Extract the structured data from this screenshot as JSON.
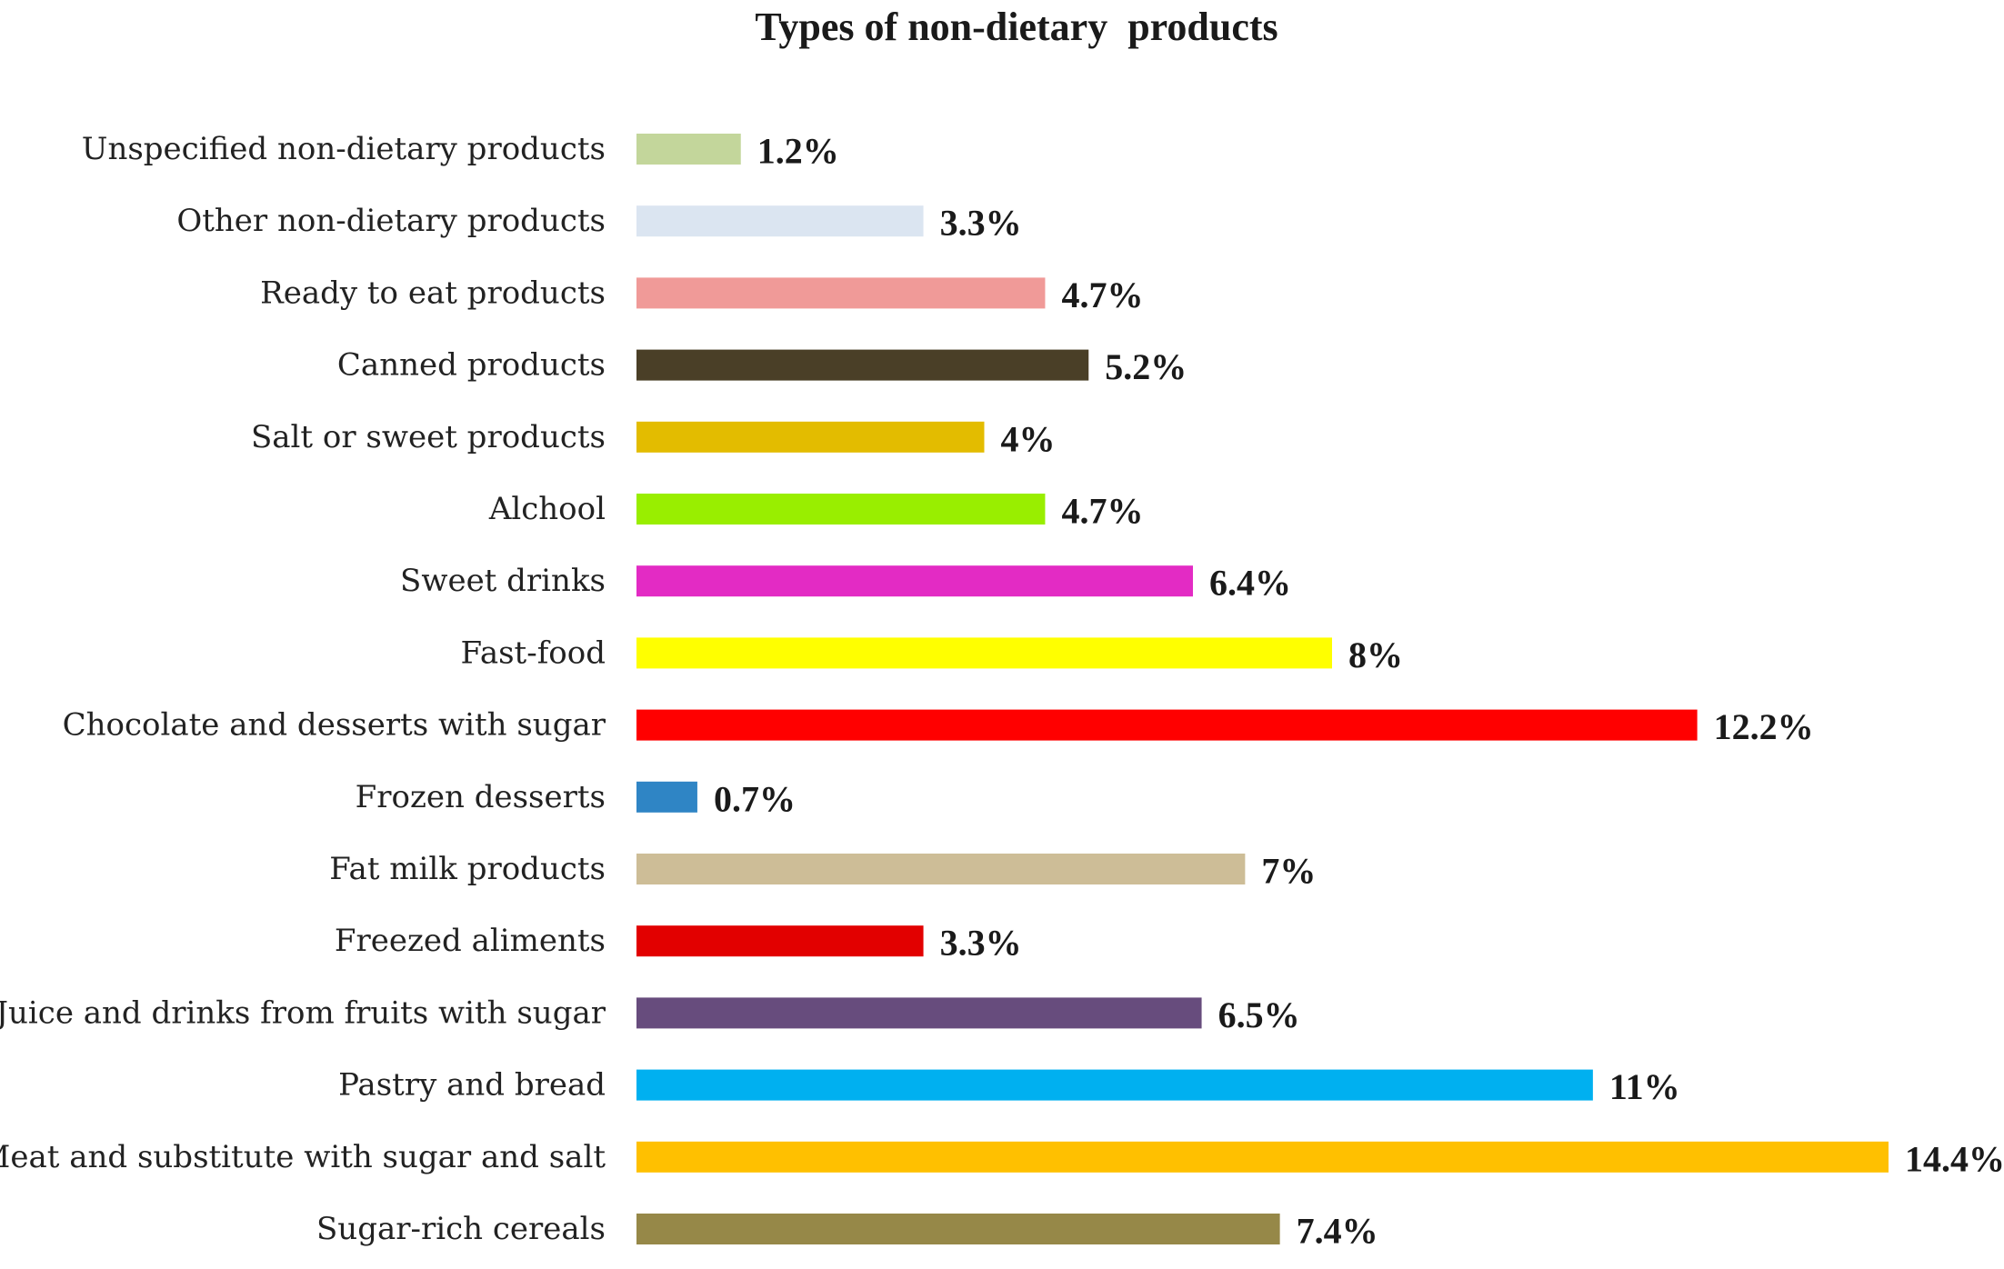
{
  "chart_data": {
    "type": "bar",
    "orientation": "horizontal",
    "title": "Types of non-dietary  products",
    "xlabel": "",
    "ylabel": "",
    "xlim": [
      0,
      14.4
    ],
    "grid": false,
    "legend": "none",
    "value_suffix": "%",
    "categories": [
      "Unspecified non-dietary products",
      "Other non-dietary products",
      "Ready to eat products",
      "Canned products",
      "Salt or sweet products",
      "Alchool",
      "Sweet drinks",
      "Fast-food",
      "Chocolate and desserts with sugar",
      "Frozen desserts",
      "Fat milk products",
      "Freezed aliments",
      "Juice and drinks from fruits with sugar",
      "Pastry and bread",
      "Meat and substitute with sugar and salt",
      "Sugar-rich cereals"
    ],
    "values": [
      1.2,
      3.3,
      4.7,
      5.2,
      4,
      4.7,
      6.4,
      8,
      12.2,
      0.7,
      7,
      3.3,
      6.5,
      11,
      14.4,
      7.4
    ],
    "value_labels": [
      "1.2%",
      "3.3%",
      "4.7%",
      "5.2%",
      "4%",
      "4.7%",
      "6.4%",
      "8%",
      "12.2%",
      "0.7%",
      "7%",
      "3.3%",
      "6.5%",
      "11%",
      "14.4%",
      "7.4%"
    ],
    "colors": [
      "#c3d69b",
      "#dbe5f1",
      "#f09a98",
      "#4a3f27",
      "#e3bc00",
      "#99ee00",
      "#e32bc4",
      "#ffff00",
      "#ff0000",
      "#2f85c5",
      "#cdbd97",
      "#e20000",
      "#674c7d",
      "#00b0f0",
      "#ffc000",
      "#968848"
    ]
  }
}
